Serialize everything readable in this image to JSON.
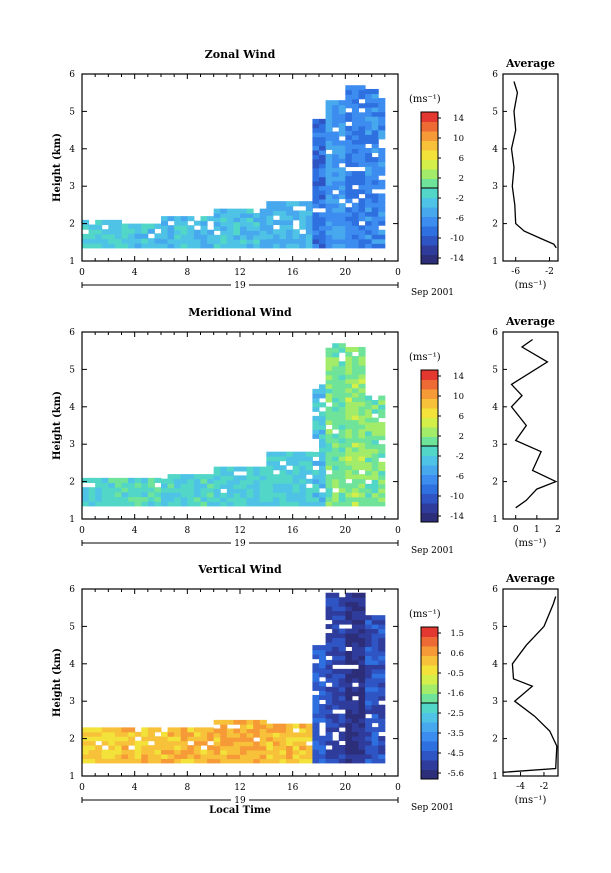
{
  "chart_data": [
    {
      "type": "heatmap",
      "id": "zonal",
      "title": "Zonal Wind",
      "ylabel": "Height (km)",
      "xlim": [
        0,
        24
      ],
      "ylim": [
        1,
        6
      ],
      "x_ticks": [
        "0",
        "4",
        "8",
        "12",
        "16",
        "20",
        "0"
      ],
      "y_ticks": [
        "1",
        "2",
        "3",
        "4",
        "5",
        "6"
      ],
      "date_label": "19",
      "date_suffix": "Sep 2001",
      "colorbar": {
        "unit": "(ms⁻¹)",
        "ticks": [
          "14",
          "10",
          "6",
          "2",
          "-2",
          "-6",
          "-10",
          "-14"
        ],
        "range": [
          -16,
          16
        ]
      },
      "field": {
        "columns": [
          {
            "x0": 0.0,
            "x1": 3.0,
            "top": 2.1,
            "v": -2.0
          },
          {
            "x0": 3.0,
            "x1": 6.0,
            "top": 2.0,
            "v": -2.5
          },
          {
            "x0": 6.0,
            "x1": 10.0,
            "top": 2.2,
            "v": -3.5
          },
          {
            "x0": 10.0,
            "x1": 14.0,
            "top": 2.4,
            "v": -3.0
          },
          {
            "x0": 14.0,
            "x1": 17.5,
            "top": 2.6,
            "v": -4.0
          },
          {
            "x0": 17.5,
            "x1": 18.5,
            "top": 4.8,
            "v": -9.0
          },
          {
            "x0": 18.5,
            "x1": 20.0,
            "top": 5.3,
            "v": -6.0
          },
          {
            "x0": 20.0,
            "x1": 21.5,
            "top": 5.7,
            "v": -8.0
          },
          {
            "x0": 21.5,
            "x1": 23.0,
            "top": 5.6,
            "v": -7.0
          }
        ]
      },
      "average": {
        "title": "Average",
        "xlabel": "(ms⁻¹)",
        "xlim": [
          -7.5,
          -1.0
        ],
        "x_ticks": [
          "-6",
          "-2"
        ],
        "y_ticks": [
          "1",
          "2",
          "3",
          "4",
          "5",
          "6"
        ],
        "profile": [
          [
            -1.2,
            1.35
          ],
          [
            -1.5,
            1.45
          ],
          [
            -3.0,
            1.6
          ],
          [
            -5.0,
            1.8
          ],
          [
            -6.0,
            2.0
          ],
          [
            -6.1,
            2.5
          ],
          [
            -6.4,
            3.0
          ],
          [
            -6.2,
            3.5
          ],
          [
            -6.5,
            4.0
          ],
          [
            -6.0,
            4.5
          ],
          [
            -6.2,
            5.0
          ],
          [
            -5.8,
            5.5
          ],
          [
            -6.2,
            5.8
          ]
        ]
      }
    },
    {
      "type": "heatmap",
      "id": "meridional",
      "title": "Meridional Wind",
      "ylabel": "Height (km)",
      "xlim": [
        0,
        24
      ],
      "ylim": [
        1,
        6
      ],
      "x_ticks": [
        "0",
        "4",
        "8",
        "12",
        "16",
        "20",
        "0"
      ],
      "y_ticks": [
        "1",
        "2",
        "3",
        "4",
        "5",
        "6"
      ],
      "date_label": "19",
      "date_suffix": "Sep 2001",
      "colorbar": {
        "unit": "(ms⁻¹)",
        "ticks": [
          "14",
          "10",
          "6",
          "2",
          "-2",
          "-6",
          "-10",
          "-14"
        ],
        "range": [
          -16,
          16
        ]
      },
      "field": {
        "columns": [
          {
            "x0": 0.0,
            "x1": 3.0,
            "top": 2.1,
            "v": -1.5
          },
          {
            "x0": 3.0,
            "x1": 6.0,
            "top": 2.1,
            "v": -1.0
          },
          {
            "x0": 6.0,
            "x1": 10.0,
            "top": 2.2,
            "v": -1.5
          },
          {
            "x0": 10.0,
            "x1": 14.0,
            "top": 2.4,
            "v": -2.0
          },
          {
            "x0": 14.0,
            "x1": 17.5,
            "top": 2.8,
            "v": -2.0
          },
          {
            "x0": 17.5,
            "x1": 18.5,
            "top": 4.6,
            "v": -3.0
          },
          {
            "x0": 18.5,
            "x1": 20.0,
            "top": 5.7,
            "v": 1.0
          },
          {
            "x0": 20.0,
            "x1": 21.5,
            "top": 5.6,
            "v": 2.5
          },
          {
            "x0": 21.5,
            "x1": 23.0,
            "top": 4.3,
            "v": 1.5
          }
        ]
      },
      "average": {
        "title": "Average",
        "xlabel": "(ms⁻¹)",
        "xlim": [
          -0.6,
          2.0
        ],
        "x_ticks": [
          "0",
          "1",
          "2"
        ],
        "y_ticks": [
          "1",
          "2",
          "3",
          "4",
          "5",
          "6"
        ],
        "profile": [
          [
            0.0,
            1.3
          ],
          [
            0.5,
            1.5
          ],
          [
            1.0,
            1.8
          ],
          [
            1.9,
            2.0
          ],
          [
            0.8,
            2.3
          ],
          [
            1.2,
            2.8
          ],
          [
            0.0,
            3.1
          ],
          [
            0.5,
            3.5
          ],
          [
            -0.2,
            4.0
          ],
          [
            0.3,
            4.3
          ],
          [
            -0.2,
            4.6
          ],
          [
            1.5,
            5.2
          ],
          [
            0.3,
            5.6
          ],
          [
            0.8,
            5.8
          ]
        ]
      }
    },
    {
      "type": "heatmap",
      "id": "vertical",
      "title": "Vertical Wind",
      "ylabel": "Height (km)",
      "xlabel": "Local Time",
      "xlim": [
        0,
        24
      ],
      "ylim": [
        1,
        6
      ],
      "x_ticks": [
        "0",
        "4",
        "8",
        "12",
        "16",
        "20",
        "0"
      ],
      "y_ticks": [
        "1",
        "2",
        "3",
        "4",
        "5",
        "6"
      ],
      "date_label": "19",
      "date_suffix": "Sep 2001",
      "colorbar": {
        "unit": "(ms⁻¹)",
        "ticks": [
          "1.5",
          "0.6",
          "-0.5",
          "-1.6",
          "-2.5",
          "-3.5",
          "-4.5",
          "-5.6"
        ],
        "range": [
          -6.0,
          2.0
        ]
      },
      "field": {
        "columns": [
          {
            "x0": 0.0,
            "x1": 3.0,
            "top": 2.3,
            "v": 0.0
          },
          {
            "x0": 3.0,
            "x1": 6.0,
            "top": 2.3,
            "v": 0.2
          },
          {
            "x0": 6.0,
            "x1": 10.0,
            "top": 2.3,
            "v": 0.3
          },
          {
            "x0": 10.0,
            "x1": 14.0,
            "top": 2.5,
            "v": 0.4
          },
          {
            "x0": 14.0,
            "x1": 17.5,
            "top": 2.4,
            "v": 0.2
          },
          {
            "x0": 17.5,
            "x1": 18.5,
            "top": 4.5,
            "v": -4.5
          },
          {
            "x0": 18.5,
            "x1": 20.0,
            "top": 5.9,
            "v": -5.0
          },
          {
            "x0": 20.0,
            "x1": 21.5,
            "top": 5.9,
            "v": -5.5
          },
          {
            "x0": 21.5,
            "x1": 23.0,
            "top": 5.3,
            "v": -4.8
          }
        ]
      },
      "average": {
        "title": "Average",
        "xlabel": "(ms⁻¹)",
        "xlim": [
          -5.5,
          -0.8
        ],
        "x_ticks": [
          "-4",
          "-2"
        ],
        "y_ticks": [
          "1",
          "2",
          "3",
          "4",
          "5",
          "6"
        ],
        "profile": [
          [
            -5.5,
            1.1
          ],
          [
            -1.0,
            1.2
          ],
          [
            -0.9,
            1.8
          ],
          [
            -1.5,
            2.2
          ],
          [
            -2.8,
            2.6
          ],
          [
            -4.5,
            3.0
          ],
          [
            -3.0,
            3.4
          ],
          [
            -4.6,
            3.6
          ],
          [
            -4.7,
            4.0
          ],
          [
            -3.5,
            4.5
          ],
          [
            -2.0,
            5.0
          ],
          [
            -1.2,
            5.6
          ],
          [
            -1.0,
            5.8
          ]
        ]
      }
    }
  ]
}
